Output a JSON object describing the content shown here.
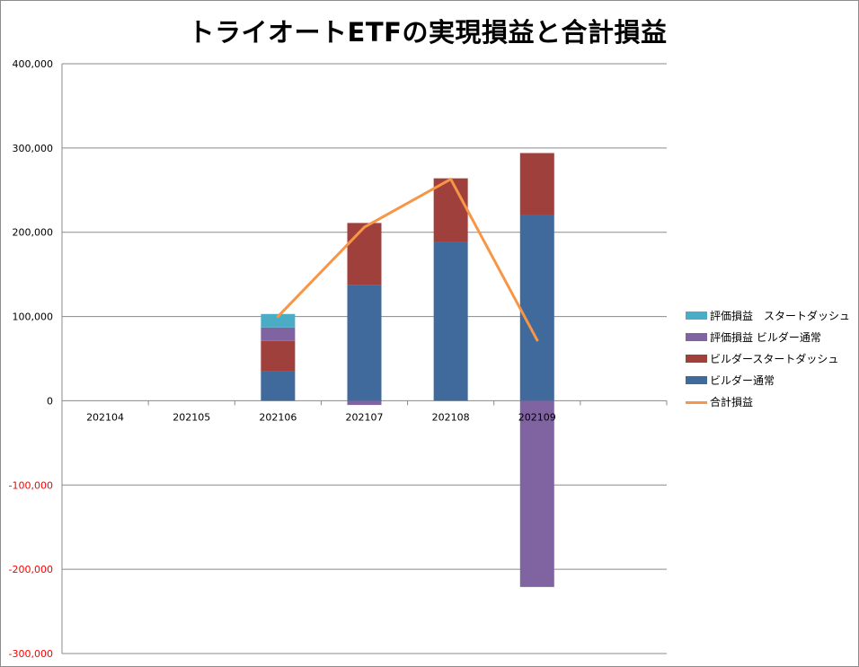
{
  "chart_data": {
    "type": "bar",
    "title": "トライオートETFの実現損益と合計損益",
    "categories": [
      "202104",
      "202105",
      "202106",
      "202107",
      "202108",
      "202109",
      ""
    ],
    "ylim": [
      -300000,
      400000
    ],
    "yticks": [
      400000,
      300000,
      200000,
      100000,
      0,
      -100000,
      -200000,
      -300000
    ],
    "ytick_labels": [
      "400,000",
      "300,000",
      "200,000",
      "100,000",
      "0",
      "-100,000",
      "-200,000",
      "-300,000"
    ],
    "negative_tick_color": "#ff0000",
    "grid": true,
    "legend_position": "right",
    "stacked": true,
    "series": [
      {
        "name": "ビルダー通常",
        "kind": "bar",
        "color": "#3f6a9b",
        "values": [
          0,
          0,
          35000,
          137000,
          189000,
          220000,
          0
        ]
      },
      {
        "name": "ビルダースタートダッシュ",
        "kind": "bar",
        "color": "#a0403d",
        "values": [
          0,
          0,
          36000,
          74000,
          75000,
          74000,
          0
        ]
      },
      {
        "name": "評価損益 ビルダー通常",
        "kind": "bar",
        "color": "#8064a2",
        "values": [
          0,
          0,
          16000,
          -5000,
          0,
          -221000,
          0
        ]
      },
      {
        "name": "評価損益　スタートダッシュ",
        "kind": "bar",
        "color": "#4bacc6",
        "values": [
          0,
          0,
          16000,
          0,
          0,
          0,
          0
        ]
      },
      {
        "name": "合計損益",
        "kind": "line",
        "color": "#f79646",
        "values": [
          null,
          null,
          100000,
          206000,
          263000,
          72000,
          null
        ]
      }
    ]
  }
}
